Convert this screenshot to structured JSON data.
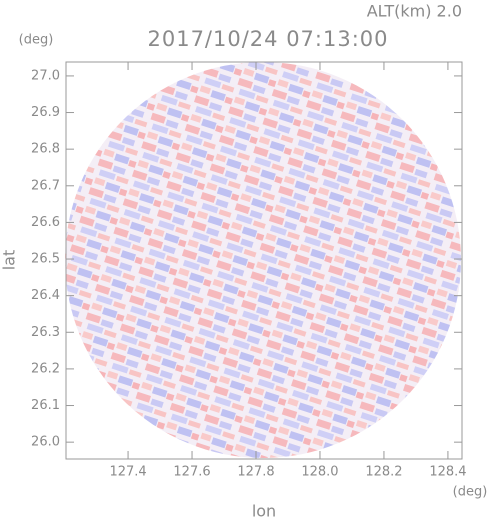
{
  "chart_data": {
    "type": "image",
    "annotation": "ALT(km) 2.0",
    "title": "2017/10/24 07:13:00",
    "x_label": "lon",
    "y_label": "lat",
    "x_unit": "(deg)",
    "y_unit": "(deg)",
    "xlim": [
      127.206,
      128.444
    ],
    "ylim": [
      25.954,
      27.038
    ],
    "xticks": [
      127.4,
      127.6,
      127.8,
      {
        "value": 128,
        "label": "128.0"
      },
      128.2,
      128.4
    ],
    "yticks": [
      {
        "value": 26,
        "label": "26.0"
      },
      26.1,
      26.2,
      26.3,
      26.4,
      26.5,
      26.6,
      26.7,
      26.8,
      26.9,
      {
        "value": 27,
        "label": "27.0"
      }
    ]
  }
}
